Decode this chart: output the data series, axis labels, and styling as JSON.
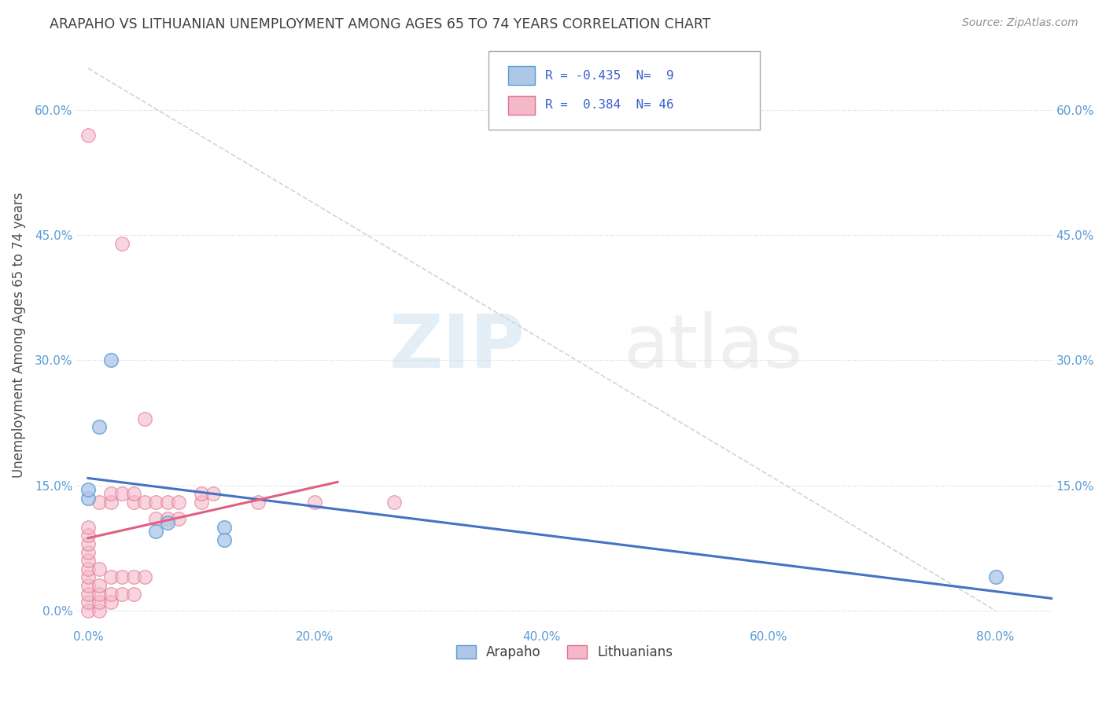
{
  "title": "ARAPAHO VS LITHUANIAN UNEMPLOYMENT AMONG AGES 65 TO 74 YEARS CORRELATION CHART",
  "source": "Source: ZipAtlas.com",
  "ylabel": "Unemployment Among Ages 65 to 74 years",
  "arapaho_R": -0.435,
  "arapaho_N": 9,
  "lithuanian_R": 0.384,
  "lithuanian_N": 46,
  "arapaho_color": "#aec6e8",
  "lithuanian_color": "#f4b8c8",
  "arapaho_edge_color": "#5b9bd5",
  "lithuanian_edge_color": "#e07090",
  "arapaho_line_color": "#4472c4",
  "lithuanian_line_color": "#e06080",
  "ref_line_color": "#c8c8c8",
  "grid_color": "#d0d0d0",
  "tick_color": "#5b9bd5",
  "title_color": "#404040",
  "source_color": "#909090",
  "ylabel_color": "#505050",
  "xlim": [
    -0.01,
    0.85
  ],
  "ylim": [
    -0.02,
    0.68
  ],
  "yticks": [
    0.0,
    0.15,
    0.3,
    0.45,
    0.6
  ],
  "xticks": [
    0.0,
    0.2,
    0.4,
    0.6,
    0.8
  ],
  "arapaho_x": [
    0.0,
    0.0,
    0.01,
    0.02,
    0.06,
    0.07,
    0.12,
    0.12,
    0.8
  ],
  "arapaho_y": [
    0.135,
    0.145,
    0.22,
    0.3,
    0.095,
    0.105,
    0.1,
    0.085,
    0.04
  ],
  "lithuanian_x": [
    0.0,
    0.0,
    0.0,
    0.0,
    0.0,
    0.0,
    0.0,
    0.0,
    0.0,
    0.0,
    0.0,
    0.0,
    0.01,
    0.01,
    0.01,
    0.01,
    0.01,
    0.01,
    0.02,
    0.02,
    0.02,
    0.02,
    0.02,
    0.03,
    0.03,
    0.03,
    0.03,
    0.04,
    0.04,
    0.04,
    0.04,
    0.05,
    0.05,
    0.05,
    0.06,
    0.06,
    0.07,
    0.07,
    0.08,
    0.08,
    0.1,
    0.1,
    0.11,
    0.15,
    0.2,
    0.27
  ],
  "lithuanian_y": [
    0.0,
    0.01,
    0.02,
    0.03,
    0.04,
    0.05,
    0.06,
    0.07,
    0.08,
    0.09,
    0.1,
    0.57,
    0.0,
    0.01,
    0.02,
    0.03,
    0.05,
    0.13,
    0.01,
    0.02,
    0.04,
    0.13,
    0.14,
    0.02,
    0.04,
    0.14,
    0.44,
    0.02,
    0.04,
    0.13,
    0.14,
    0.04,
    0.13,
    0.23,
    0.11,
    0.13,
    0.11,
    0.13,
    0.11,
    0.13,
    0.13,
    0.14,
    0.14,
    0.13,
    0.13,
    0.13
  ]
}
